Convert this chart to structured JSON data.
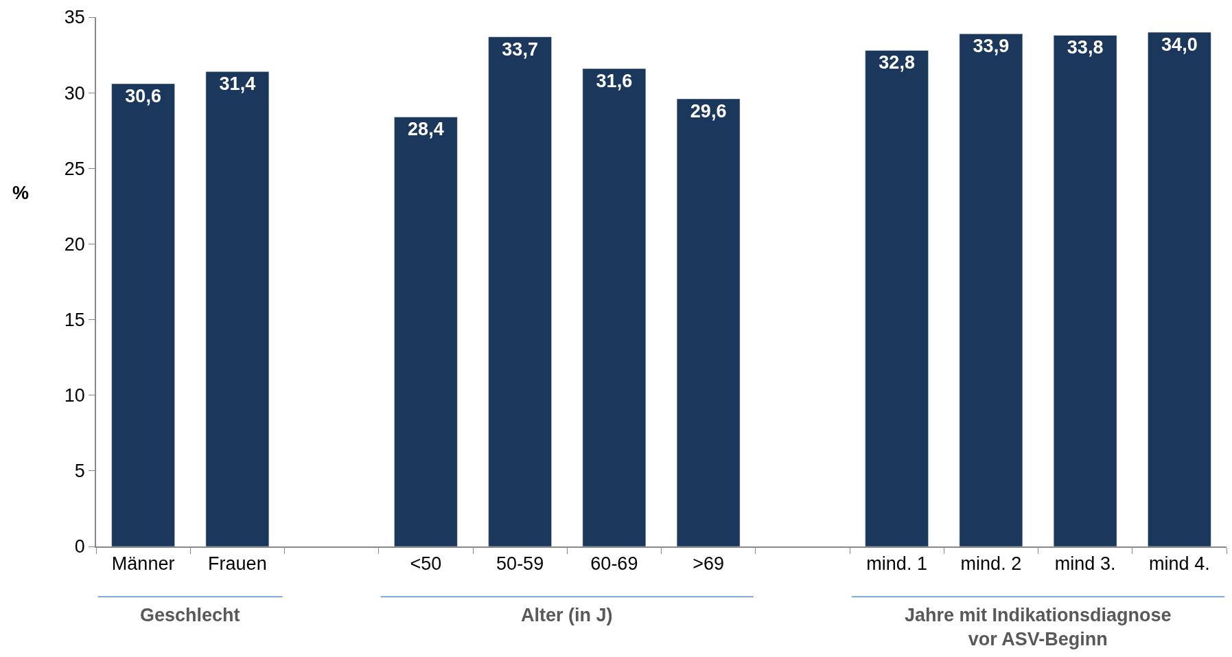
{
  "chart_data": {
    "type": "bar",
    "ylabel": "%",
    "categories": [
      "Männer",
      "Frauen",
      null,
      "<50",
      "50-59",
      "60-69",
      ">69",
      null,
      "mind. 1",
      "mind. 2",
      "mind 3.",
      "mind 4."
    ],
    "values": [
      30.6,
      31.4,
      null,
      28.4,
      33.7,
      31.6,
      29.6,
      null,
      32.8,
      33.9,
      33.8,
      34.0
    ],
    "value_labels": [
      "30,6",
      "31,4",
      null,
      "28,4",
      "33,7",
      "31,6",
      "29,6",
      null,
      "32,8",
      "33,9",
      "33,8",
      "34,0"
    ],
    "color": "#1b375c",
    "ylim": [
      0,
      35
    ],
    "yticks": [
      0,
      5,
      10,
      15,
      20,
      25,
      30,
      35
    ],
    "legend": false,
    "annotations": [
      "Geschlecht",
      "Alter (in J)",
      "Jahre mit Indikationsdiagnose\nvor ASV-Beginn"
    ]
  }
}
